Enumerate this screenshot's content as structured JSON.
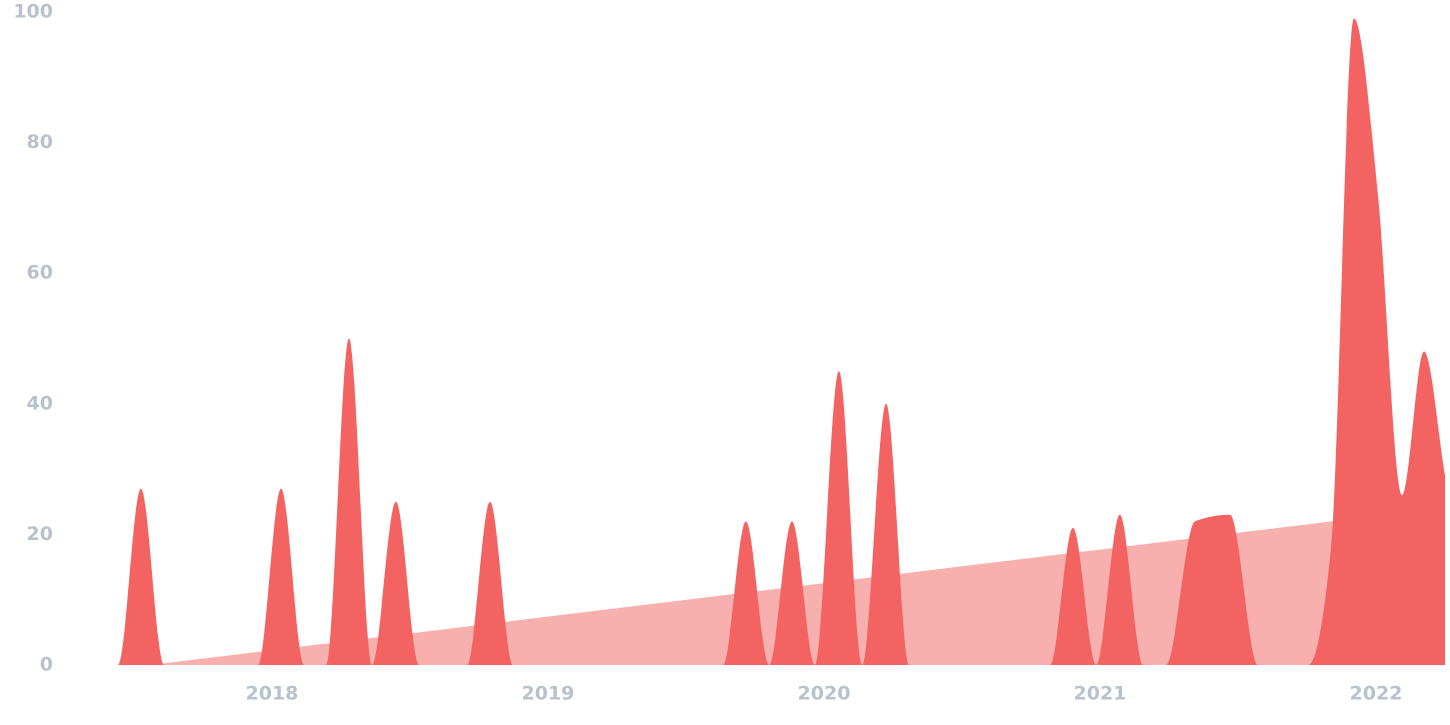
{
  "chart_data": {
    "type": "area",
    "series": [
      {
        "color": "#f7b0ae",
        "x": [
          2017.558,
          2022.25
        ],
        "values": [
          0,
          24.1
        ]
      },
      {
        "color": "#f26361",
        "x": [
          2017.29,
          2017.442,
          2017.525,
          2017.609,
          2017.949,
          2018.033,
          2018.116,
          2018.196,
          2018.279,
          2018.362,
          2018.449,
          2018.533,
          2018.707,
          2018.79,
          2018.873,
          2019.634,
          2019.717,
          2019.801,
          2019.884,
          2019.967,
          2020.054,
          2020.138,
          2020.225,
          2020.308,
          2020.819,
          2020.902,
          2020.986,
          2021.072,
          2021.156,
          2021.239,
          2021.344,
          2021.471,
          2021.572,
          2021.754,
          2021.837,
          2021.92,
          2022.007,
          2022.094,
          2022.174,
          2022.25
        ],
        "values": [
          0,
          0,
          27,
          0,
          0,
          27,
          0,
          0,
          50,
          0,
          25,
          0,
          0,
          25,
          0,
          0,
          22,
          0,
          22,
          0,
          45,
          0,
          40,
          0,
          0,
          21,
          0,
          23,
          0,
          0,
          22,
          23,
          0,
          0,
          18,
          99,
          72,
          26,
          48,
          29
        ]
      }
    ],
    "xlim": [
      2017.29,
      2022.25
    ],
    "xticks": [
      2018,
      2019,
      2020,
      2021,
      2022
    ],
    "ylim": [
      0,
      100
    ],
    "yticks": [
      0,
      20,
      40,
      60,
      80,
      100
    ],
    "grid": false
  }
}
